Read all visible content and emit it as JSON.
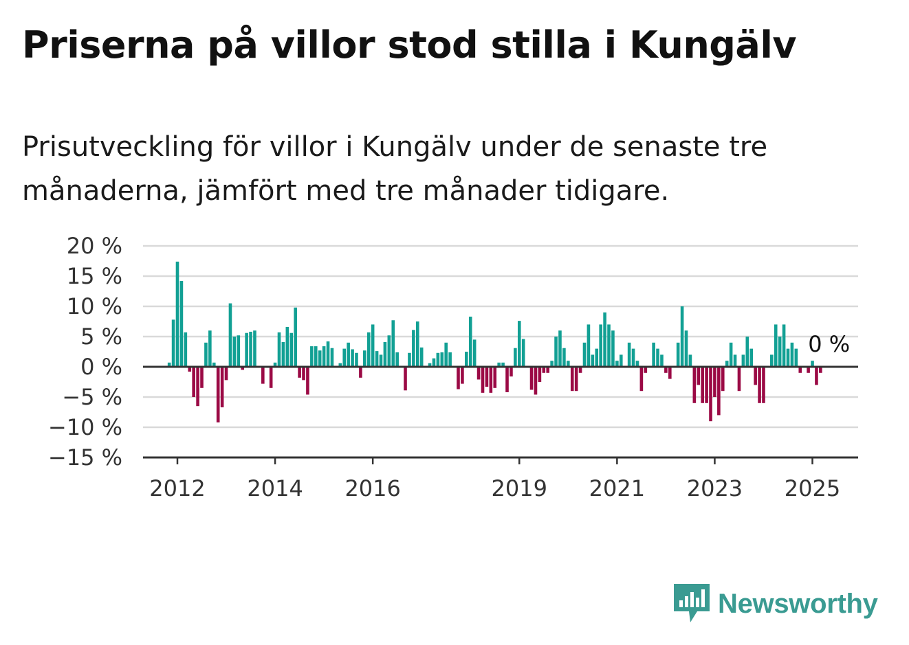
{
  "title": "Priserna på villor stod stilla i Kungälv",
  "subtitle": "Prisutveckling för villor i Kungälv under de senaste tre månaderna, jämfört med tre månader tidigare.",
  "brand": {
    "name": "Newsworthy",
    "color": "#3a9b92",
    "icon": "newsworthy-logo-icon"
  },
  "colors": {
    "positive": "#12a094",
    "negative": "#9b0a45",
    "axis": "#333333",
    "grid": "#d9d9d9"
  },
  "chart_data": {
    "type": "bar",
    "title": "",
    "xlabel": "",
    "ylabel": "",
    "ylim": [
      -15,
      20
    ],
    "y_ticks": [
      -15,
      -10,
      -5,
      0,
      5,
      10,
      15,
      20
    ],
    "y_tick_labels": [
      "−15 %",
      "−10 %",
      "−5 %",
      "0 %",
      "5 %",
      "10 %",
      "15 %",
      "20 %"
    ],
    "x_ticks": [
      2012,
      2014,
      2016,
      2019,
      2021,
      2023,
      2025
    ],
    "x_tick_labels": [
      "2012",
      "2014",
      "2016",
      "2019",
      "2021",
      "2023",
      "2025"
    ],
    "grid": true,
    "start_month": "2011-11",
    "last_value_label": "0 %",
    "values": [
      0.7,
      7.8,
      17.4,
      14.2,
      5.7,
      -0.8,
      -5,
      -6.5,
      -3.5,
      4,
      6,
      0.7,
      -9.2,
      -6.7,
      -2.2,
      10.5,
      5,
      5.2,
      -0.5,
      5.6,
      5.8,
      6,
      0,
      -2.8,
      0,
      -3.5,
      0.7,
      5.7,
      4.1,
      6.6,
      5.6,
      9.8,
      -1.8,
      -2.2,
      -4.6,
      3.4,
      3.4,
      2.7,
      3.4,
      4.2,
      3.1,
      0,
      0.6,
      3,
      4,
      2.9,
      2.3,
      -1.8,
      2.7,
      5.7,
      7,
      2.6,
      2,
      4.1,
      5.2,
      7.7,
      2.4,
      0,
      -3.9,
      2.3,
      6.1,
      7.5,
      3.2,
      0,
      0.6,
      1.4,
      2.3,
      2.4,
      4,
      2.4,
      0,
      -3.7,
      -2.8,
      2.5,
      8.3,
      4.5,
      -2.1,
      -4.3,
      -3.3,
      -4.3,
      -3.5,
      0.7,
      0.7,
      -4.2,
      -1.6,
      3.1,
      7.6,
      4.6,
      0,
      -3.8,
      -4.6,
      -2.5,
      -1,
      -1,
      1,
      5,
      6,
      3.1,
      1,
      -4,
      -4,
      -1,
      4,
      7,
      2,
      3,
      7,
      9,
      7,
      6,
      1,
      2,
      0,
      4,
      3,
      1,
      -4,
      -1,
      0,
      4,
      3,
      2,
      -1,
      -2,
      0,
      4,
      10,
      6,
      2,
      -6,
      -3,
      -6,
      -6,
      -9,
      -5,
      -8,
      -4,
      1,
      4,
      2,
      -4,
      2,
      5,
      3,
      -3,
      -6,
      -6,
      0,
      2,
      7,
      5,
      7,
      3,
      4,
      3,
      -1,
      0,
      -1,
      1,
      -3,
      -1,
      0
    ]
  }
}
